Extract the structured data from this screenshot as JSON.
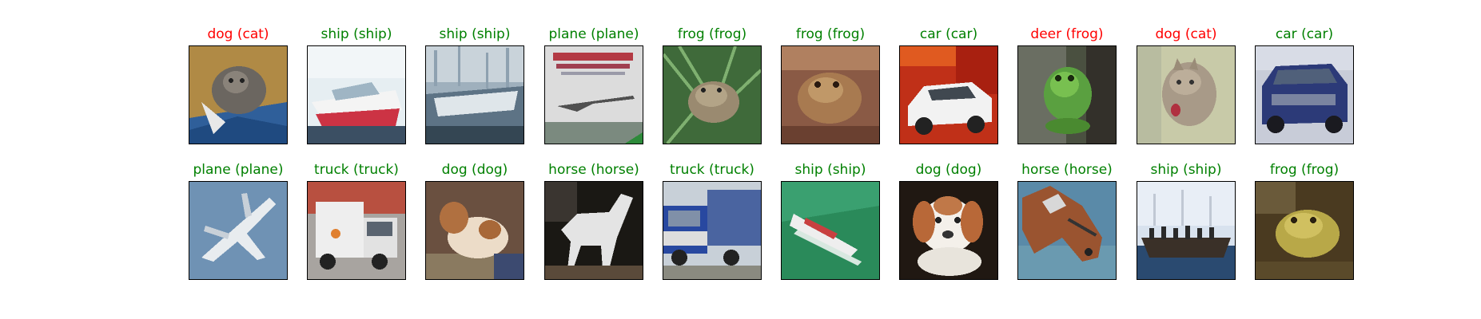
{
  "colors": {
    "correct": "#008000",
    "wrong": "#ff0000"
  },
  "rows": [
    [
      {
        "caption": "dog (cat)",
        "correct": false,
        "picture": "cat-on-blue-cloth"
      },
      {
        "caption": "ship (ship)",
        "correct": true,
        "picture": "white-boat"
      },
      {
        "caption": "ship (ship)",
        "correct": true,
        "picture": "grey-boat"
      },
      {
        "caption": "plane (plane)",
        "correct": true,
        "picture": "concorde-book-cover"
      },
      {
        "caption": "frog (frog)",
        "correct": true,
        "picture": "frog-in-grass"
      },
      {
        "caption": "frog (frog)",
        "correct": true,
        "picture": "brown-frog"
      },
      {
        "caption": "car (car)",
        "correct": true,
        "picture": "white-car-red-bg"
      },
      {
        "caption": "deer (frog)",
        "correct": false,
        "picture": "green-frog"
      },
      {
        "caption": "dog (cat)",
        "correct": false,
        "picture": "pale-cat"
      },
      {
        "caption": "car (car)",
        "correct": true,
        "picture": "blue-suv"
      }
    ],
    [
      {
        "caption": "plane (plane)",
        "correct": true,
        "picture": "jet-in-sky"
      },
      {
        "caption": "truck (truck)",
        "correct": true,
        "picture": "white-truck"
      },
      {
        "caption": "dog (dog)",
        "correct": true,
        "picture": "brown-white-dog"
      },
      {
        "caption": "horse (horse)",
        "correct": true,
        "picture": "white-horse"
      },
      {
        "caption": "truck (truck)",
        "correct": true,
        "picture": "blue-truck"
      },
      {
        "caption": "ship (ship)",
        "correct": true,
        "picture": "boat-on-green-water"
      },
      {
        "caption": "dog (dog)",
        "correct": true,
        "picture": "puppy"
      },
      {
        "caption": "horse (horse)",
        "correct": true,
        "picture": "horse-head"
      },
      {
        "caption": "ship (ship)",
        "correct": true,
        "picture": "boat-with-crowd"
      },
      {
        "caption": "frog (frog)",
        "correct": true,
        "picture": "yellow-frog"
      }
    ]
  ]
}
